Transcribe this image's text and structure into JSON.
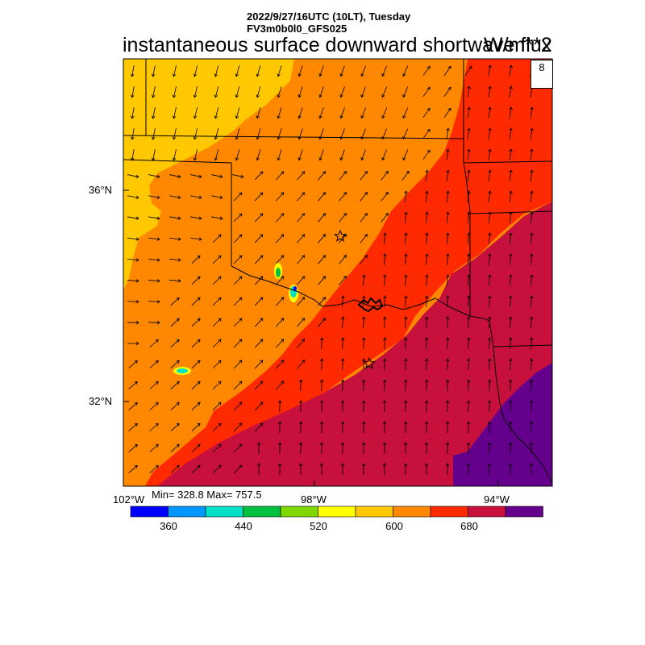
{
  "header": {
    "datetime": "2022/9/27/16UTC (10LT), Tuesday",
    "model": "FV3m0b0l0_GFS025"
  },
  "title": "instantaneous surface downward shortwave flux",
  "units": "W/m**2",
  "map": {
    "lat_labels": [
      "36°N",
      "32°N"
    ],
    "lon_labels": [
      "102°W",
      "98°W",
      "94°W"
    ],
    "stats": "Min= 328.8 Max= 757.5",
    "reference_vector": "8",
    "station_markers": [
      "star",
      "star"
    ]
  },
  "colorbar": {
    "labels": [
      "360",
      "440",
      "520",
      "600",
      "680"
    ],
    "colors": [
      "#0000ff",
      "#0096ff",
      "#00e0c8",
      "#00c040",
      "#80d800",
      "#ffff00",
      "#ffc800",
      "#ff8800",
      "#ff2a00",
      "#c8103c",
      "#64008c"
    ]
  },
  "field_colors": {
    "c560": "#ffc800",
    "c600": "#ff8800",
    "c640": "#ff2a00",
    "c680": "#c8103c",
    "c720": "#64008c"
  }
}
